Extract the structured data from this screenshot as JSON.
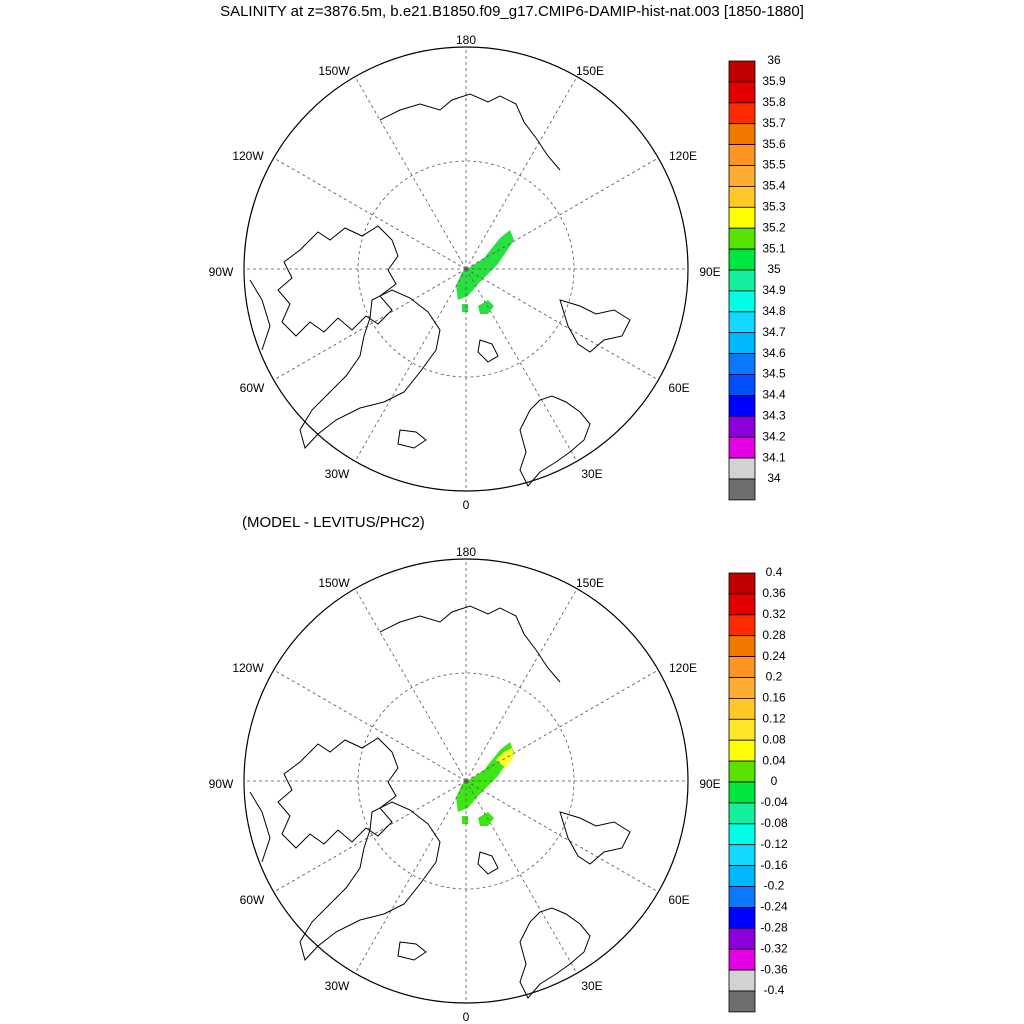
{
  "title": "SALINITY at z=3876.5m, b.e21.B1850.f09_g17.CMIP6-DAMIP-hist-nat.003 [1850-1880]",
  "subtitle": "(MODEL - LEVITUS/PHC2)",
  "map": {
    "projection": "north-polar-stereographic",
    "lon_labels": [
      "180",
      "150E",
      "120E",
      "90E",
      "60E",
      "30E",
      "0",
      "30W",
      "60W",
      "90W",
      "120W",
      "150W"
    ],
    "grid": "dashed"
  },
  "panels": [
    {
      "id": "salinity",
      "colorbar": {
        "labels": [
          "36",
          "35.9",
          "35.8",
          "35.7",
          "35.6",
          "35.5",
          "35.4",
          "35.3",
          "35.2",
          "35.1",
          "35",
          "34.9",
          "34.8",
          "34.7",
          "34.6",
          "34.5",
          "34.4",
          "34.3",
          "34.2",
          "34.1",
          "34"
        ],
        "colors": [
          "#c00000",
          "#e30000",
          "#ff2a00",
          "#f07800",
          "#ff9420",
          "#ffad30",
          "#ffc828",
          "#ffff00",
          "#58e400",
          "#00e640",
          "#14f0a0",
          "#00ffe6",
          "#14d8ff",
          "#00b8ff",
          "#0a78ff",
          "#0050ff",
          "#0000ff",
          "#8c00dc",
          "#e600e6",
          "#d2d2d2",
          "#6e6e6e"
        ]
      },
      "fill_color": "#28e040"
    },
    {
      "id": "difference",
      "colorbar": {
        "labels": [
          "0.4",
          "0.36",
          "0.32",
          "0.28",
          "0.24",
          "0.2",
          "0.16",
          "0.12",
          "0.08",
          "0.04",
          "0",
          "-0.04",
          "-0.08",
          "-0.12",
          "-0.16",
          "-0.2",
          "-0.24",
          "-0.28",
          "-0.32",
          "-0.36",
          "-0.4"
        ],
        "colors": [
          "#c00000",
          "#e30000",
          "#ff2a00",
          "#f07800",
          "#ff9420",
          "#ffad30",
          "#ffc828",
          "#ffe628",
          "#ffff00",
          "#58e400",
          "#00e640",
          "#14f0a0",
          "#00ffe6",
          "#14d8ff",
          "#00b8ff",
          "#0a78ff",
          "#0000ff",
          "#8c00dc",
          "#e600e6",
          "#d2d2d2",
          "#6e6e6e"
        ]
      },
      "fill_color": "#3ce614",
      "highlight_color": "#ffff28"
    }
  ]
}
